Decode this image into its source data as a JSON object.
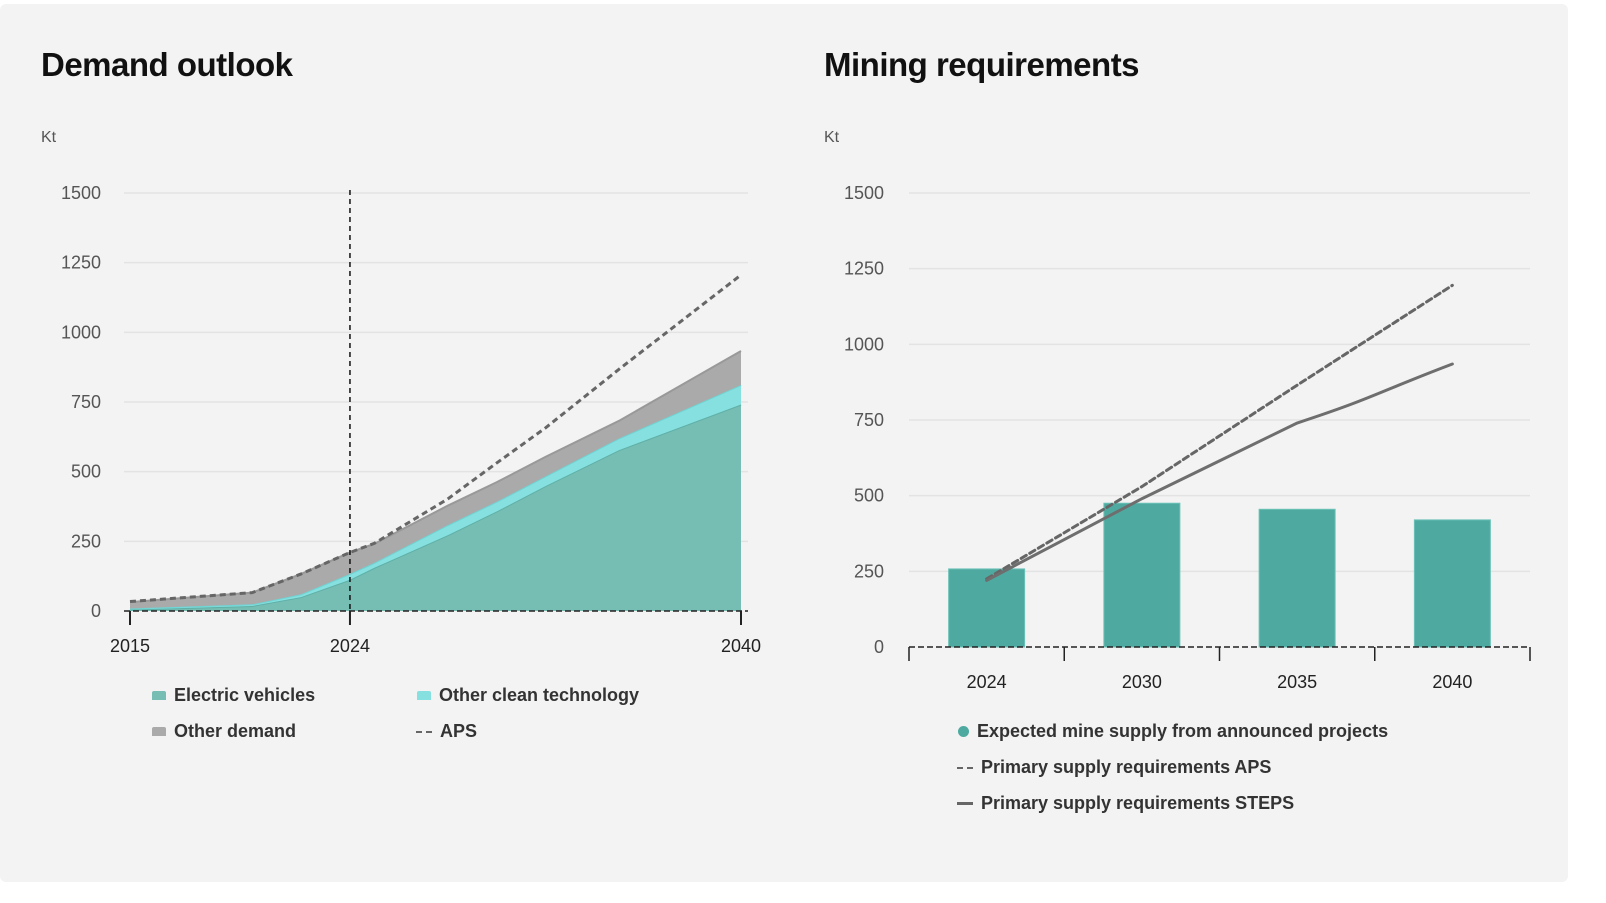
{
  "colors": {
    "ev": "#76bdb4",
    "clean": "#86e0e0",
    "other": "#aaaaaa",
    "aps": "#666666",
    "bars": "#4eaaa0",
    "steps": "#6e6e6e",
    "grid": "#e3e3e3"
  },
  "chart_data": [
    {
      "type": "area",
      "title": "Demand outlook",
      "ylabel": "Kt",
      "ylim": [
        0,
        1500
      ],
      "yticks": [
        0,
        250,
        500,
        750,
        1000,
        1250,
        1500
      ],
      "xticks": [
        2015,
        2024,
        2040
      ],
      "marker_year": 2024,
      "grid": true,
      "legend_placement": "bottom",
      "x": [
        2015,
        2020,
        2022,
        2024,
        2025,
        2028,
        2030,
        2032,
        2035,
        2040
      ],
      "series": [
        {
          "name": "Electric vehicles",
          "key": "ev",
          "stacked": true,
          "values": [
            5,
            18,
            50,
            112,
            155,
            272,
            357,
            448,
            577,
            741
          ]
        },
        {
          "name": "Other clean technology",
          "key": "clean",
          "stacked": true,
          "values": [
            4,
            6,
            10,
            21,
            18,
            36,
            35,
            35,
            42,
            70
          ]
        },
        {
          "name": "Other demand",
          "key": "other",
          "stacked": true,
          "values": [
            23,
            42,
            73,
            77,
            68,
            70,
            70,
            70,
            63,
            122
          ]
        },
        {
          "name": "APS",
          "key": "aps",
          "style": "dashed",
          "values": [
            34,
            66,
            133,
            210,
            243,
            402,
            531,
            657,
            867,
            1206
          ]
        }
      ]
    },
    {
      "type": "bar",
      "title": "Mining requirements",
      "ylabel": "Kt",
      "ylim": [
        0,
        1500
      ],
      "yticks": [
        0,
        250,
        500,
        750,
        1000,
        1250,
        1500
      ],
      "categories": [
        "2024",
        "2030",
        "2035",
        "2040"
      ],
      "grid": true,
      "legend_placement": "bottom",
      "series": [
        {
          "name": "Expected mine supply from announced projects",
          "key": "bars",
          "kind": "bar",
          "values": [
            258,
            475,
            455,
            420
          ]
        },
        {
          "name": "Primary supply requirements APS",
          "key": "aps",
          "kind": "line",
          "style": "dashed",
          "values": [
            225,
            530,
            865,
            1195
          ]
        },
        {
          "name": "Primary supply requirements STEPS",
          "key": "steps",
          "kind": "line",
          "style": "solid",
          "values": [
            220,
            490,
            740,
            935
          ]
        }
      ]
    }
  ]
}
